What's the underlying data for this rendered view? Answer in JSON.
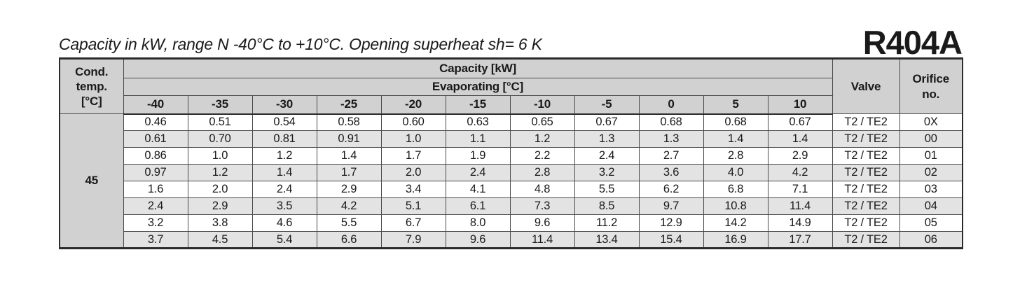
{
  "page": {
    "title": "Capacity in kW, range N -40°C to +10°C. Opening superheat sh= 6 K",
    "refrigerant": "R404A"
  },
  "table": {
    "cond_temp_header": "Cond.\ntemp.\n[°C]",
    "capacity_header": "Capacity [kW]",
    "evaporating_header": "Evaporating [°C]",
    "valve_header": "Valve",
    "orifice_header": "Orifice\nno.",
    "evap_temps": [
      "-40",
      "-35",
      "-30",
      "-25",
      "-20",
      "-15",
      "-10",
      "-5",
      "0",
      "5",
      "10"
    ],
    "cond_temp_value": "45",
    "rows": [
      {
        "values": [
          "0.46",
          "0.51",
          "0.54",
          "0.58",
          "0.60",
          "0.63",
          "0.65",
          "0.67",
          "0.68",
          "0.68",
          "0.67"
        ],
        "valve": "T2 / TE2",
        "orifice": "0X"
      },
      {
        "values": [
          "0.61",
          "0.70",
          "0.81",
          "0.91",
          "1.0",
          "1.1",
          "1.2",
          "1.3",
          "1.3",
          "1.4",
          "1.4"
        ],
        "valve": "T2 / TE2",
        "orifice": "00"
      },
      {
        "values": [
          "0.86",
          "1.0",
          "1.2",
          "1.4",
          "1.7",
          "1.9",
          "2.2",
          "2.4",
          "2.7",
          "2.8",
          "2.9"
        ],
        "valve": "T2 / TE2",
        "orifice": "01"
      },
      {
        "values": [
          "0.97",
          "1.2",
          "1.4",
          "1.7",
          "2.0",
          "2.4",
          "2.8",
          "3.2",
          "3.6",
          "4.0",
          "4.2"
        ],
        "valve": "T2 / TE2",
        "orifice": "02"
      },
      {
        "values": [
          "1.6",
          "2.0",
          "2.4",
          "2.9",
          "3.4",
          "4.1",
          "4.8",
          "5.5",
          "6.2",
          "6.8",
          "7.1"
        ],
        "valve": "T2 / TE2",
        "orifice": "03"
      },
      {
        "values": [
          "2.4",
          "2.9",
          "3.5",
          "4.2",
          "5.1",
          "6.1",
          "7.3",
          "8.5",
          "9.7",
          "10.8",
          "11.4"
        ],
        "valve": "T2 / TE2",
        "orifice": "04"
      },
      {
        "values": [
          "3.2",
          "3.8",
          "4.6",
          "5.5",
          "6.7",
          "8.0",
          "9.6",
          "11.2",
          "12.9",
          "14.2",
          "14.9"
        ],
        "valve": "T2 / TE2",
        "orifice": "05"
      },
      {
        "values": [
          "3.7",
          "4.5",
          "5.4",
          "6.6",
          "7.9",
          "9.6",
          "11.4",
          "13.4",
          "15.4",
          "16.9",
          "17.7"
        ],
        "valve": "T2 / TE2",
        "orifice": "06"
      }
    ]
  },
  "colors": {
    "header_bg": "#d1d1d1",
    "row_alt_bg": "#e3e3e3",
    "border": "#4a4a4a",
    "outer_border": "#2b2b2b"
  }
}
